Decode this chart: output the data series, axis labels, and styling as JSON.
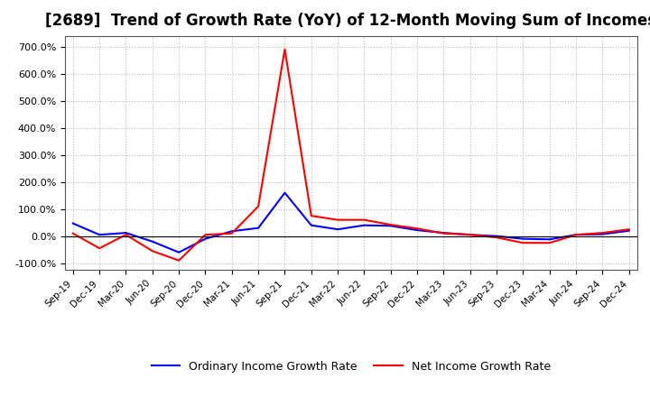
{
  "title": "[2689]  Trend of Growth Rate (YoY) of 12-Month Moving Sum of Incomes",
  "title_fontsize": 12,
  "legend_labels": [
    "Ordinary Income Growth Rate",
    "Net Income Growth Rate"
  ],
  "legend_colors": [
    "#0000FF",
    "#FF0000"
  ],
  "x_labels": [
    "Sep-19",
    "Dec-19",
    "Mar-20",
    "Jun-20",
    "Sep-20",
    "Dec-20",
    "Mar-21",
    "Jun-21",
    "Sep-21",
    "Dec-21",
    "Mar-22",
    "Jun-22",
    "Sep-22",
    "Dec-22",
    "Mar-23",
    "Jun-23",
    "Sep-23",
    "Dec-23",
    "Mar-24",
    "Jun-24",
    "Sep-24",
    "Dec-24"
  ],
  "ylim": [
    -125,
    740
  ],
  "yticks": [
    -100,
    0,
    100,
    200,
    300,
    400,
    500,
    600,
    700
  ],
  "ytick_labels": [
    "-100.0%",
    "0.0%",
    "100.0%",
    "200.0%",
    "300.0%",
    "400.0%",
    "500.0%",
    "600.0%",
    "700.0%"
  ],
  "ordinary_income_growth": [
    47,
    5,
    12,
    -20,
    -60,
    -10,
    18,
    30,
    160,
    40,
    25,
    40,
    38,
    22,
    12,
    5,
    0,
    -10,
    -12,
    5,
    7,
    20
  ],
  "net_income_growth": [
    10,
    -45,
    5,
    -55,
    -90,
    5,
    10,
    110,
    690,
    75,
    60,
    60,
    42,
    28,
    10,
    5,
    -5,
    -25,
    -25,
    5,
    12,
    25
  ],
  "background_color": "#FFFFFF",
  "grid_color": "#BBBBBB",
  "plot_bg_color": "#FFFFFF"
}
